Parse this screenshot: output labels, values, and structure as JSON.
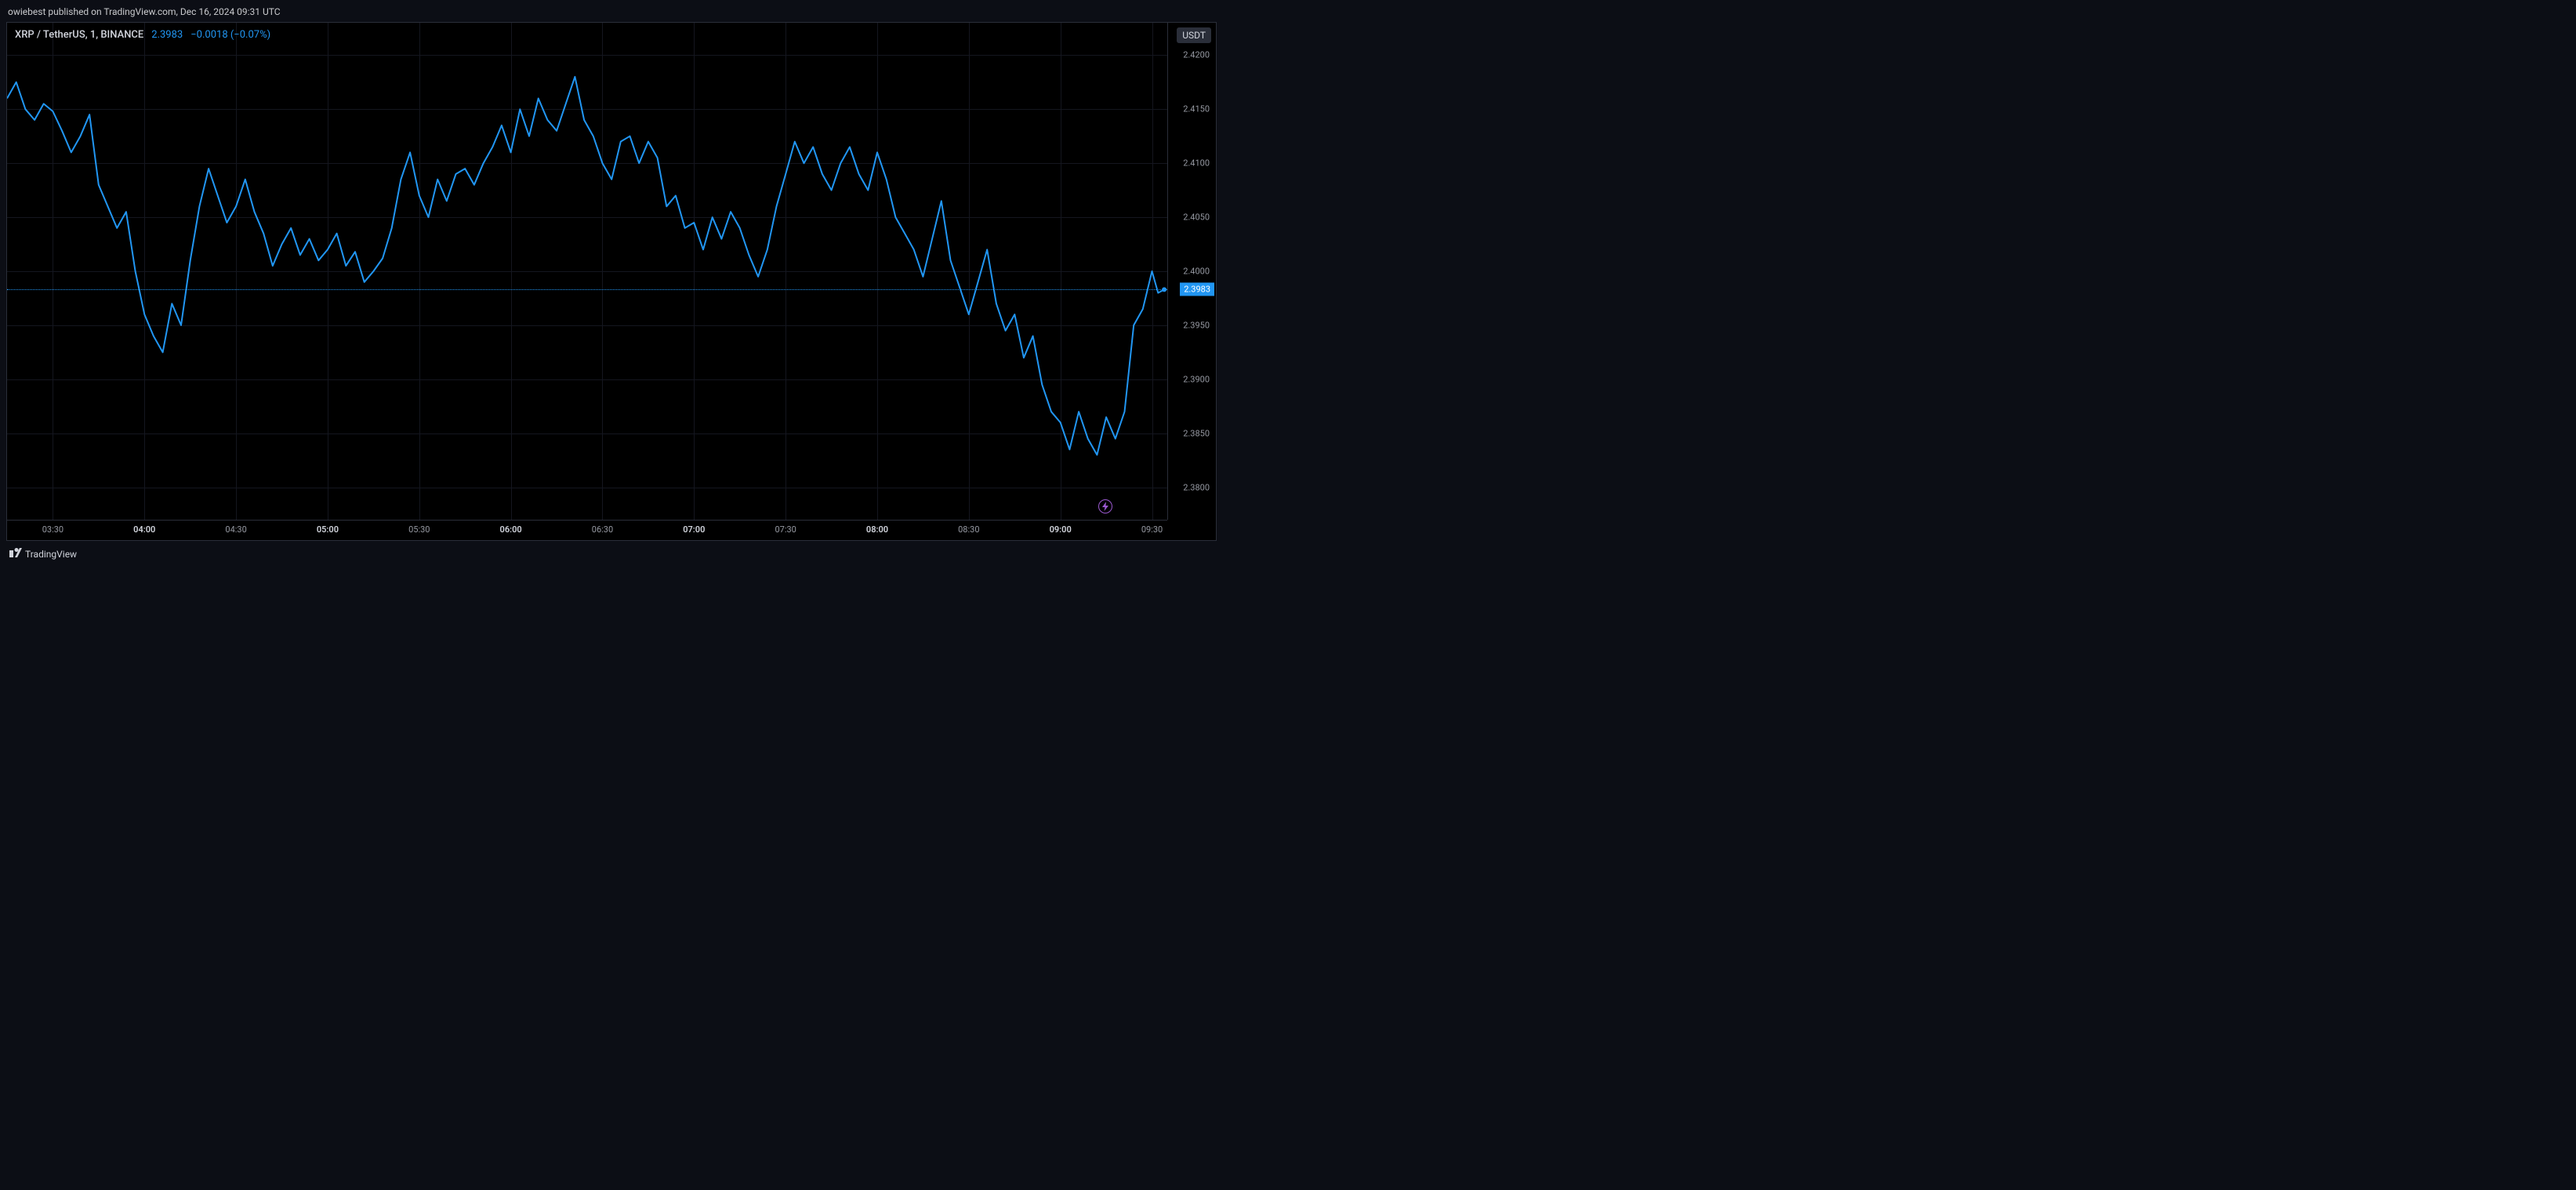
{
  "caption": "owiebest published on TradingView.com, Dec 16, 2024 09:31 UTC",
  "header": {
    "symbol": "XRP / TetherUS, 1, BINANCE",
    "price": "2.3983",
    "change": "−0.0018 (−0.07%)"
  },
  "footer": {
    "brand": "TradingView"
  },
  "chart": {
    "type": "line",
    "line_color": "#2196f3",
    "line_width": 2,
    "background_color": "#000000",
    "grid_color": "#14161f",
    "border_color": "#2a2e39",
    "y_axis": {
      "unit_label": "USDT",
      "min": 2.377,
      "max": 2.423,
      "ticks": [
        2.42,
        2.415,
        2.41,
        2.405,
        2.4,
        2.395,
        2.39,
        2.385,
        2.38
      ],
      "tick_labels": [
        "2.4200",
        "2.4150",
        "2.4100",
        "2.4050",
        "2.4000",
        "2.3950",
        "2.3900",
        "2.3850",
        "2.3800"
      ],
      "label_color": "#9598a1",
      "label_fontsize": 11
    },
    "x_axis": {
      "min": 195,
      "max": 575,
      "ticks": [
        210,
        240,
        270,
        300,
        330,
        360,
        390,
        420,
        450,
        480,
        510,
        540,
        570
      ],
      "tick_labels": [
        "03:30",
        "04:00",
        "04:30",
        "05:00",
        "05:30",
        "06:00",
        "06:30",
        "07:00",
        "07:30",
        "08:00",
        "08:30",
        "09:00",
        "09:30"
      ],
      "bold_ticks": [
        240,
        300,
        360,
        420,
        480,
        540
      ],
      "label_color": "#9598a1",
      "bold_color": "#d1d4dc"
    },
    "current_price": 2.3983,
    "current_price_label": "2.3983",
    "series": [
      [
        195,
        2.416
      ],
      [
        198,
        2.4175
      ],
      [
        201,
        2.415
      ],
      [
        204,
        2.414
      ],
      [
        207,
        2.4155
      ],
      [
        210,
        2.4148
      ],
      [
        213,
        2.413
      ],
      [
        216,
        2.411
      ],
      [
        219,
        2.4125
      ],
      [
        222,
        2.4145
      ],
      [
        225,
        2.408
      ],
      [
        228,
        2.406
      ],
      [
        231,
        2.404
      ],
      [
        234,
        2.4055
      ],
      [
        237,
        2.4
      ],
      [
        240,
        2.396
      ],
      [
        243,
        2.394
      ],
      [
        246,
        2.3925
      ],
      [
        249,
        2.397
      ],
      [
        252,
        2.395
      ],
      [
        255,
        2.401
      ],
      [
        258,
        2.406
      ],
      [
        261,
        2.4095
      ],
      [
        264,
        2.407
      ],
      [
        267,
        2.4045
      ],
      [
        270,
        2.406
      ],
      [
        273,
        2.4085
      ],
      [
        276,
        2.4055
      ],
      [
        279,
        2.4035
      ],
      [
        282,
        2.4005
      ],
      [
        285,
        2.4025
      ],
      [
        288,
        2.404
      ],
      [
        291,
        2.4015
      ],
      [
        294,
        2.403
      ],
      [
        297,
        2.401
      ],
      [
        300,
        2.402
      ],
      [
        303,
        2.4035
      ],
      [
        306,
        2.4005
      ],
      [
        309,
        2.4018
      ],
      [
        312,
        2.399
      ],
      [
        315,
        2.4
      ],
      [
        318,
        2.4012
      ],
      [
        321,
        2.404
      ],
      [
        324,
        2.4085
      ],
      [
        327,
        2.411
      ],
      [
        330,
        2.407
      ],
      [
        333,
        2.405
      ],
      [
        336,
        2.4085
      ],
      [
        339,
        2.4065
      ],
      [
        342,
        2.409
      ],
      [
        345,
        2.4095
      ],
      [
        348,
        2.408
      ],
      [
        351,
        2.41
      ],
      [
        354,
        2.4115
      ],
      [
        357,
        2.4135
      ],
      [
        360,
        2.411
      ],
      [
        363,
        2.415
      ],
      [
        366,
        2.4125
      ],
      [
        369,
        2.416
      ],
      [
        372,
        2.414
      ],
      [
        375,
        2.413
      ],
      [
        378,
        2.4155
      ],
      [
        381,
        2.418
      ],
      [
        384,
        2.414
      ],
      [
        387,
        2.4125
      ],
      [
        390,
        2.41
      ],
      [
        393,
        2.4085
      ],
      [
        396,
        2.412
      ],
      [
        399,
        2.4125
      ],
      [
        402,
        2.41
      ],
      [
        405,
        2.412
      ],
      [
        408,
        2.4105
      ],
      [
        411,
        2.406
      ],
      [
        414,
        2.407
      ],
      [
        417,
        2.404
      ],
      [
        420,
        2.4045
      ],
      [
        423,
        2.402
      ],
      [
        426,
        2.405
      ],
      [
        429,
        2.403
      ],
      [
        432,
        2.4055
      ],
      [
        435,
        2.404
      ],
      [
        438,
        2.4015
      ],
      [
        441,
        2.3995
      ],
      [
        444,
        2.402
      ],
      [
        447,
        2.406
      ],
      [
        450,
        2.409
      ],
      [
        453,
        2.412
      ],
      [
        456,
        2.41
      ],
      [
        459,
        2.4115
      ],
      [
        462,
        2.409
      ],
      [
        465,
        2.4075
      ],
      [
        468,
        2.41
      ],
      [
        471,
        2.4115
      ],
      [
        474,
        2.409
      ],
      [
        477,
        2.4075
      ],
      [
        480,
        2.411
      ],
      [
        483,
        2.4085
      ],
      [
        486,
        2.405
      ],
      [
        489,
        2.4035
      ],
      [
        492,
        2.402
      ],
      [
        495,
        2.3995
      ],
      [
        498,
        2.403
      ],
      [
        501,
        2.4065
      ],
      [
        504,
        2.401
      ],
      [
        507,
        2.3985
      ],
      [
        510,
        2.396
      ],
      [
        513,
        2.399
      ],
      [
        516,
        2.402
      ],
      [
        519,
        2.397
      ],
      [
        522,
        2.3945
      ],
      [
        525,
        2.396
      ],
      [
        528,
        2.392
      ],
      [
        531,
        2.394
      ],
      [
        534,
        2.3895
      ],
      [
        537,
        2.387
      ],
      [
        540,
        2.386
      ],
      [
        543,
        2.3835
      ],
      [
        546,
        2.387
      ],
      [
        549,
        2.3845
      ],
      [
        552,
        2.383
      ],
      [
        555,
        2.3865
      ],
      [
        558,
        2.3845
      ],
      [
        561,
        2.387
      ],
      [
        564,
        2.395
      ],
      [
        567,
        2.3965
      ],
      [
        570,
        2.4
      ],
      [
        572,
        2.398
      ],
      [
        574,
        2.3983
      ]
    ],
    "last_point_marker": {
      "color": "#2196f3",
      "radius": 3
    }
  },
  "badge": {
    "icon": "lightning-icon",
    "color": "#9b59d0"
  }
}
